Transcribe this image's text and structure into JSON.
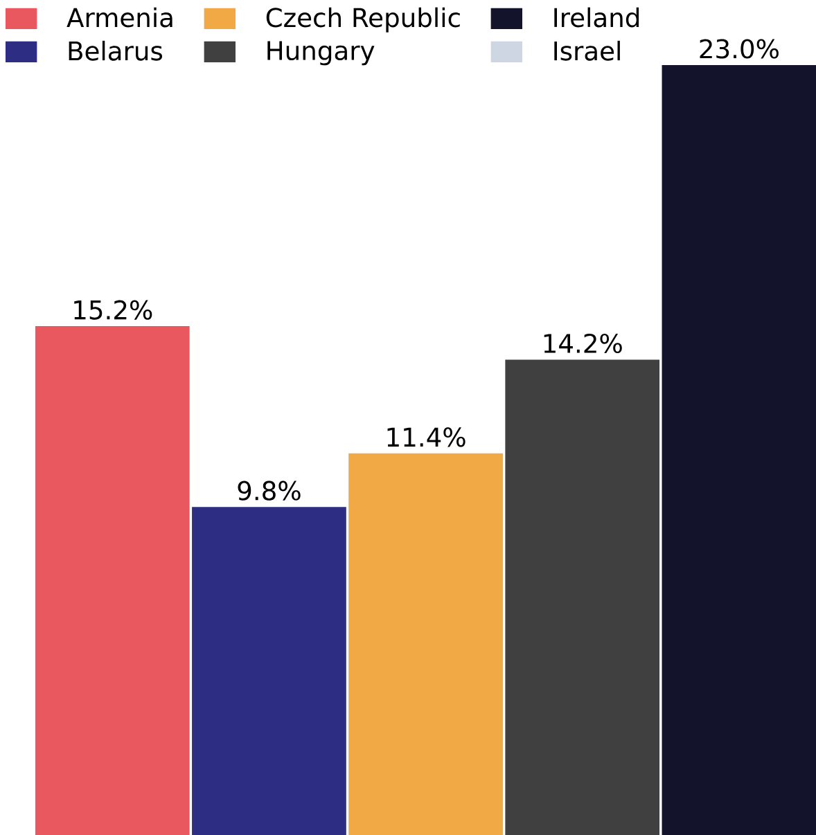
{
  "chart_data": {
    "type": "bar",
    "categories": [
      null
    ],
    "legend": "top left",
    "series": [
      {
        "name": "Armenia",
        "color": "#e9585f",
        "values": [
          15.2
        ],
        "value_labels": [
          "15.2%"
        ]
      },
      {
        "name": "Belarus",
        "color": "#2d2e83",
        "values": [
          9.8
        ],
        "value_labels": [
          "9.8%"
        ]
      },
      {
        "name": "Czech Republic",
        "color": "#f0a944",
        "values": [
          11.4
        ],
        "value_labels": [
          "11.4%"
        ]
      },
      {
        "name": "Hungary",
        "color": "#404040",
        "values": [
          14.2
        ],
        "value_labels": [
          "14.2%"
        ]
      },
      {
        "name": "Ireland",
        "color": "#13142b",
        "values": [
          23.0
        ],
        "value_labels": [
          "23.0%"
        ]
      },
      {
        "name": "Israel",
        "color": "#ced6e3",
        "values": [
          null
        ],
        "value_labels": [
          null
        ]
      }
    ]
  }
}
